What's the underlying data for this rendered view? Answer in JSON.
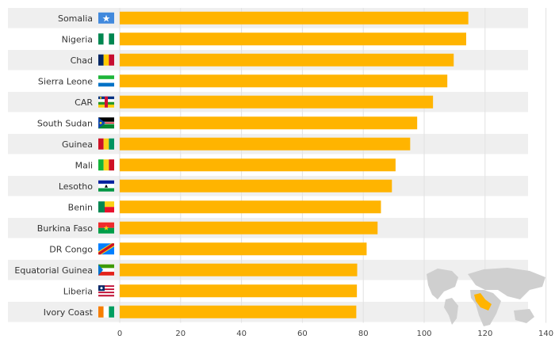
{
  "chart_data": {
    "type": "bar",
    "orientation": "horizontal",
    "categories": [
      "Somalia",
      "Nigeria",
      "Chad",
      "Sierra Leone",
      "CAR",
      "South Sudan",
      "Guinea",
      "Mali",
      "Lesotho",
      "Benin",
      "Burkina Faso",
      "DR Congo",
      "Equatorial Guinea",
      "Liberia",
      "Ivory Coast"
    ],
    "values": [
      114.5,
      113.8,
      109.7,
      107.6,
      102.9,
      97.7,
      95.4,
      90.6,
      89.4,
      85.8,
      84.7,
      81.1,
      78.0,
      77.9,
      77.7
    ],
    "xlim": [
      0,
      140
    ],
    "xticks": [
      0,
      20,
      40,
      60,
      80,
      100,
      120,
      140
    ],
    "xlabel": "",
    "ylabel": "",
    "title": "",
    "grid": true,
    "bar_color": "#FFB400",
    "flags": [
      "flag-somalia-icon",
      "flag-nigeria-icon",
      "flag-chad-icon",
      "flag-sierra-leone-icon",
      "flag-car-icon",
      "flag-south-sudan-icon",
      "flag-guinea-icon",
      "flag-mali-icon",
      "flag-lesotho-icon",
      "flag-benin-icon",
      "flag-burkina-faso-icon",
      "flag-dr-congo-icon",
      "flag-equatorial-guinea-icon",
      "flag-liberia-icon",
      "flag-ivory-coast-icon"
    ],
    "inset_map": "world-map-africa-highlight-icon"
  }
}
